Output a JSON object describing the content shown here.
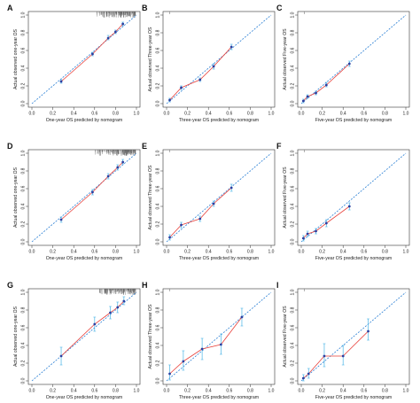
{
  "chart_data": [
    {
      "letter": "A",
      "type": "scatter",
      "xlabel": "One-year OS predicted by nomogram",
      "ylabel": "Actual observed one-year OS",
      "xlim": [
        0,
        1
      ],
      "ylim": [
        0,
        1
      ],
      "ticks": [
        "0.0",
        "0.2",
        "0.4",
        "0.6",
        "0.8",
        "1.0"
      ],
      "rug": true,
      "points": [
        {
          "x": 0.28,
          "y": 0.25,
          "lo": 0.23,
          "hi": 0.27
        },
        {
          "x": 0.58,
          "y": 0.56,
          "lo": 0.54,
          "hi": 0.58
        },
        {
          "x": 0.73,
          "y": 0.74,
          "lo": 0.72,
          "hi": 0.77
        },
        {
          "x": 0.8,
          "y": 0.81,
          "lo": 0.79,
          "hi": 0.83
        },
        {
          "x": 0.87,
          "y": 0.9,
          "lo": 0.88,
          "hi": 0.92
        }
      ]
    },
    {
      "letter": "B",
      "type": "scatter",
      "xlabel": "Three-year OS predicted by nomogram",
      "ylabel": "Actual observed Three-year OS",
      "xlim": [
        0,
        1
      ],
      "ylim": [
        0,
        1
      ],
      "ticks": [
        "0.0",
        "0.2",
        "0.4",
        "0.6",
        "0.8",
        "1.0"
      ],
      "rug": false,
      "points": [
        {
          "x": 0.03,
          "y": 0.04,
          "lo": 0.02,
          "hi": 0.06
        },
        {
          "x": 0.14,
          "y": 0.18,
          "lo": 0.16,
          "hi": 0.2
        },
        {
          "x": 0.32,
          "y": 0.27,
          "lo": 0.25,
          "hi": 0.29
        },
        {
          "x": 0.45,
          "y": 0.42,
          "lo": 0.39,
          "hi": 0.45
        },
        {
          "x": 0.62,
          "y": 0.64,
          "lo": 0.61,
          "hi": 0.67
        }
      ]
    },
    {
      "letter": "C",
      "type": "scatter",
      "xlabel": "Five-year OS predicted by nomogram",
      "ylabel": "Actual observed Five-year OS",
      "xlim": [
        0,
        1
      ],
      "ylim": [
        0,
        1
      ],
      "ticks": [
        "0.0",
        "0.2",
        "0.4",
        "0.6",
        "0.8",
        "1.0"
      ],
      "rug": false,
      "points": [
        {
          "x": 0.02,
          "y": 0.03,
          "lo": 0.01,
          "hi": 0.05
        },
        {
          "x": 0.06,
          "y": 0.08,
          "lo": 0.06,
          "hi": 0.1
        },
        {
          "x": 0.14,
          "y": 0.12,
          "lo": 0.1,
          "hi": 0.14
        },
        {
          "x": 0.24,
          "y": 0.21,
          "lo": 0.19,
          "hi": 0.24
        },
        {
          "x": 0.46,
          "y": 0.45,
          "lo": 0.42,
          "hi": 0.48
        }
      ]
    },
    {
      "letter": "D",
      "type": "scatter",
      "xlabel": "One-year OS predicted by nomogram",
      "ylabel": "Actual observed one-year OS",
      "xlim": [
        0,
        1
      ],
      "ylim": [
        0,
        1
      ],
      "ticks": [
        "0.0",
        "0.2",
        "0.4",
        "0.6",
        "0.8",
        "1.0"
      ],
      "rug": true,
      "points": [
        {
          "x": 0.28,
          "y": 0.25,
          "lo": 0.22,
          "hi": 0.28
        },
        {
          "x": 0.58,
          "y": 0.56,
          "lo": 0.53,
          "hi": 0.59
        },
        {
          "x": 0.73,
          "y": 0.74,
          "lo": 0.71,
          "hi": 0.77
        },
        {
          "x": 0.82,
          "y": 0.84,
          "lo": 0.81,
          "hi": 0.87
        },
        {
          "x": 0.87,
          "y": 0.9,
          "lo": 0.88,
          "hi": 0.93
        }
      ]
    },
    {
      "letter": "E",
      "type": "scatter",
      "xlabel": "Three-year OS predicted by nomogram",
      "ylabel": "Actual observed Three-year OS",
      "xlim": [
        0,
        1
      ],
      "ylim": [
        0,
        1
      ],
      "ticks": [
        "0.0",
        "0.2",
        "0.4",
        "0.6",
        "0.8",
        "1.0"
      ],
      "rug": false,
      "points": [
        {
          "x": 0.03,
          "y": 0.05,
          "lo": 0.02,
          "hi": 0.08
        },
        {
          "x": 0.14,
          "y": 0.19,
          "lo": 0.16,
          "hi": 0.22
        },
        {
          "x": 0.32,
          "y": 0.26,
          "lo": 0.23,
          "hi": 0.29
        },
        {
          "x": 0.45,
          "y": 0.43,
          "lo": 0.4,
          "hi": 0.46
        },
        {
          "x": 0.62,
          "y": 0.61,
          "lo": 0.57,
          "hi": 0.65
        }
      ]
    },
    {
      "letter": "F",
      "type": "scatter",
      "xlabel": "Five-year OS predicted by nomogram",
      "ylabel": "Actual observed Five-year OS",
      "xlim": [
        0,
        1
      ],
      "ylim": [
        0,
        1
      ],
      "ticks": [
        "0.0",
        "0.2",
        "0.4",
        "0.6",
        "0.8",
        "1.0"
      ],
      "rug": false,
      "points": [
        {
          "x": 0.02,
          "y": 0.04,
          "lo": 0.01,
          "hi": 0.07
        },
        {
          "x": 0.06,
          "y": 0.09,
          "lo": 0.06,
          "hi": 0.12
        },
        {
          "x": 0.14,
          "y": 0.12,
          "lo": 0.09,
          "hi": 0.15
        },
        {
          "x": 0.24,
          "y": 0.21,
          "lo": 0.17,
          "hi": 0.25
        },
        {
          "x": 0.46,
          "y": 0.4,
          "lo": 0.36,
          "hi": 0.44
        }
      ]
    },
    {
      "letter": "G",
      "type": "scatter",
      "xlabel": "One-year OS predicted by nomogram",
      "ylabel": "Actual observed one-year OS",
      "xlim": [
        0,
        1
      ],
      "ylim": [
        0,
        1
      ],
      "ticks": [
        "0.0",
        "0.2",
        "0.4",
        "0.6",
        "0.8",
        "1.0"
      ],
      "rug": true,
      "points": [
        {
          "x": 0.28,
          "y": 0.28,
          "lo": 0.18,
          "hi": 0.38
        },
        {
          "x": 0.6,
          "y": 0.64,
          "lo": 0.56,
          "hi": 0.72
        },
        {
          "x": 0.75,
          "y": 0.77,
          "lo": 0.7,
          "hi": 0.84
        },
        {
          "x": 0.82,
          "y": 0.83,
          "lo": 0.77,
          "hi": 0.89
        },
        {
          "x": 0.88,
          "y": 0.9,
          "lo": 0.86,
          "hi": 0.95
        }
      ]
    },
    {
      "letter": "H",
      "type": "scatter",
      "xlabel": "Three-year OS predicted by nomogram",
      "ylabel": "Actual observed Three-year OS",
      "xlim": [
        0,
        1
      ],
      "ylim": [
        0,
        1
      ],
      "ticks": [
        "0.0",
        "0.2",
        "0.4",
        "0.6",
        "0.8",
        "1.0"
      ],
      "rug": false,
      "points": [
        {
          "x": 0.03,
          "y": 0.08,
          "lo": 0.01,
          "hi": 0.18
        },
        {
          "x": 0.16,
          "y": 0.22,
          "lo": 0.12,
          "hi": 0.34
        },
        {
          "x": 0.34,
          "y": 0.36,
          "lo": 0.24,
          "hi": 0.48
        },
        {
          "x": 0.52,
          "y": 0.41,
          "lo": 0.3,
          "hi": 0.53
        },
        {
          "x": 0.72,
          "y": 0.72,
          "lo": 0.62,
          "hi": 0.82
        }
      ]
    },
    {
      "letter": "I",
      "type": "scatter",
      "xlabel": "Five-year OS predicted by nomogram",
      "ylabel": "Actual observed Five-year OS",
      "xlim": [
        0,
        1
      ],
      "ylim": [
        0,
        1
      ],
      "ticks": [
        "0.0",
        "0.2",
        "0.4",
        "0.6",
        "0.8",
        "1.0"
      ],
      "rug": false,
      "points": [
        {
          "x": 0.02,
          "y": 0.03,
          "lo": 0.0,
          "hi": 0.07
        },
        {
          "x": 0.07,
          "y": 0.08,
          "lo": 0.03,
          "hi": 0.14
        },
        {
          "x": 0.22,
          "y": 0.28,
          "lo": 0.16,
          "hi": 0.42
        },
        {
          "x": 0.4,
          "y": 0.28,
          "lo": 0.18,
          "hi": 0.4
        },
        {
          "x": 0.64,
          "y": 0.56,
          "lo": 0.46,
          "hi": 0.7
        }
      ]
    }
  ],
  "colors": {
    "calibration_line": "#e8403a",
    "point": "#2b3fa0",
    "error_bar": "#4ab4e6",
    "ideal_line": "#2a7fd4",
    "axis": "#333333"
  }
}
